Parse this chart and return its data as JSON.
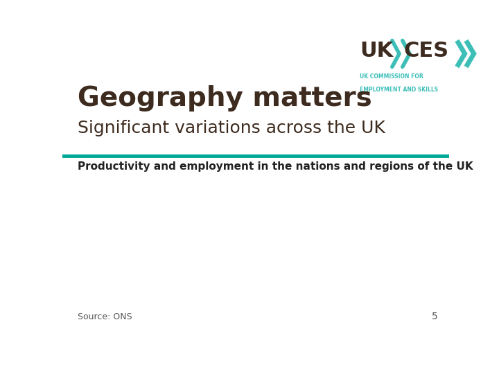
{
  "title": "Geography matters",
  "subtitle": "Significant variations across the UK",
  "section_label": "Productivity and employment in the nations and regions of the UK",
  "source_text": "Source: ONS",
  "page_number": "5",
  "background_color": "#ffffff",
  "title_fontsize": 28,
  "subtitle_fontsize": 18,
  "section_label_fontsize": 11,
  "source_fontsize": 9,
  "page_fontsize": 10,
  "teal_line_color": "#00a896",
  "dark_brown_color": "#3d2b1f",
  "teal_logo_color": "#3dbfb8",
  "section_label_color": "#222222",
  "source_color": "#555555",
  "page_color": "#555555"
}
